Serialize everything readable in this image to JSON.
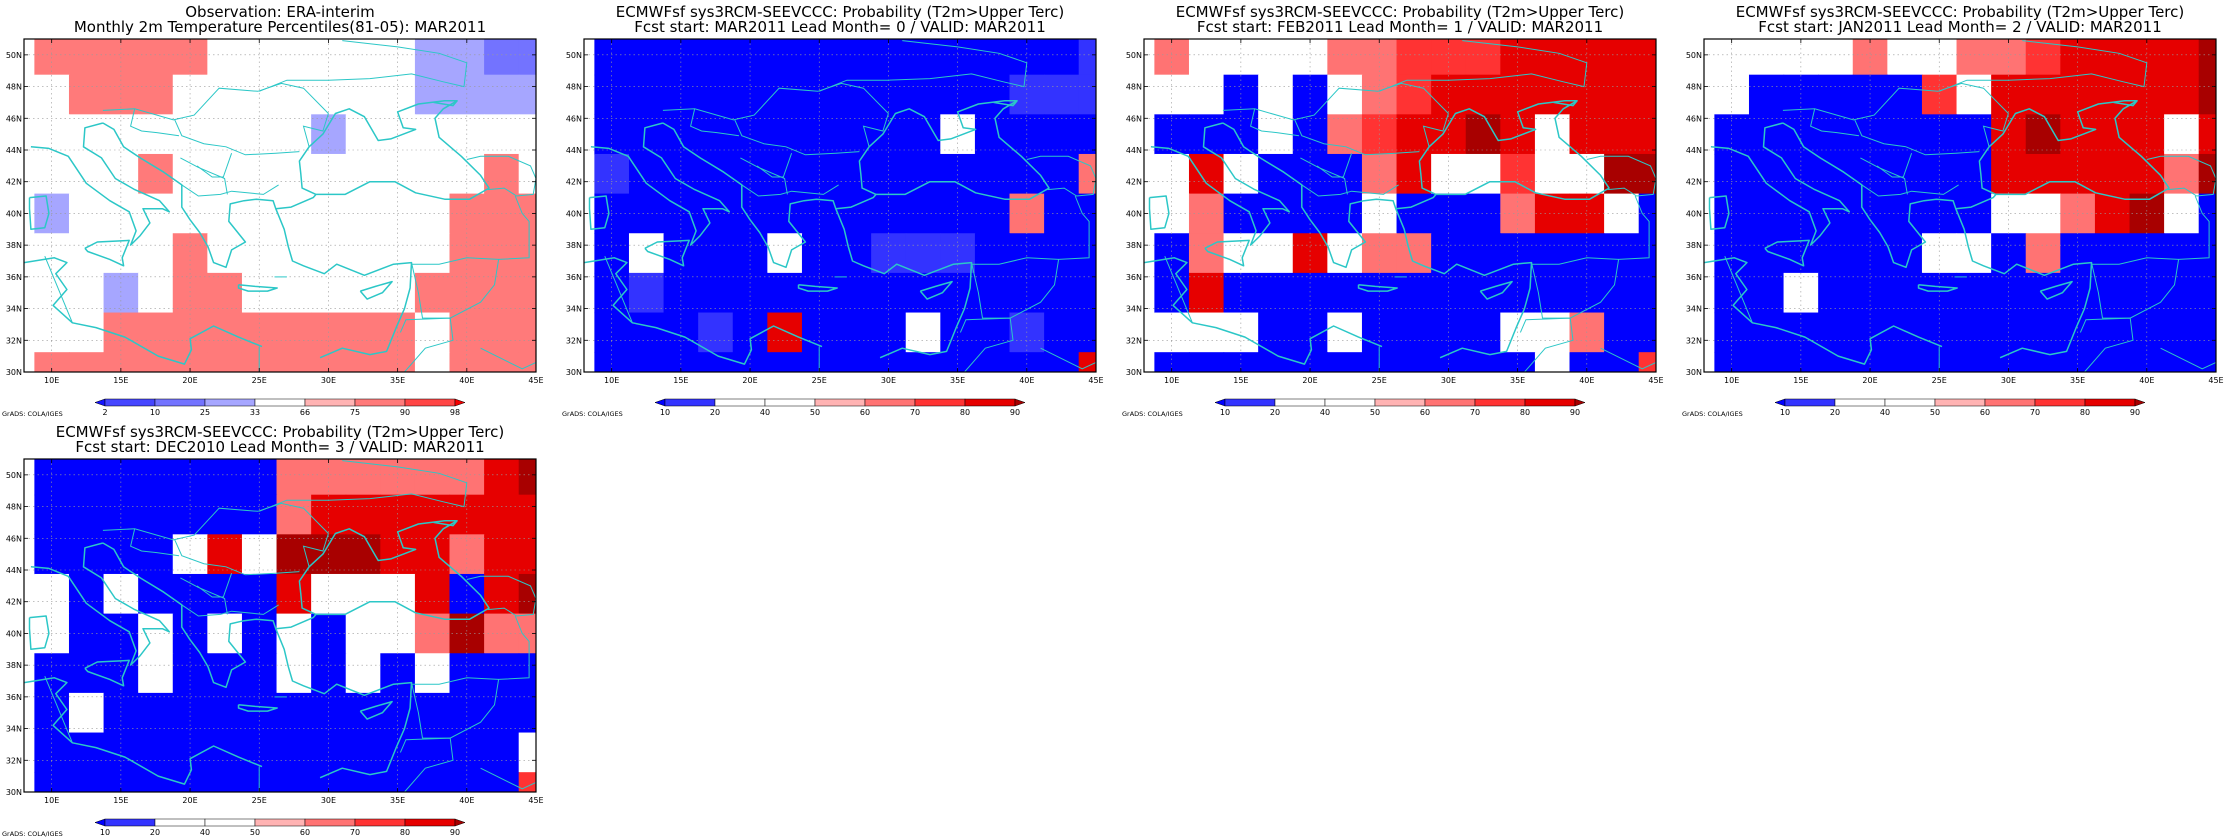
{
  "grid": {
    "lon_start": 8,
    "lon_end": 45,
    "lat_start": 30,
    "lat_end": 51,
    "cell_deg": 2.5
  },
  "axis": {
    "lon_ticks": [
      10,
      15,
      20,
      25,
      30,
      35,
      40,
      45
    ],
    "lon_labels": [
      "10E",
      "15E",
      "20E",
      "25E",
      "30E",
      "35E",
      "40E",
      "45E"
    ],
    "lat_ticks": [
      30,
      32,
      34,
      36,
      38,
      40,
      42,
      44,
      46,
      48,
      50
    ],
    "lat_labels": [
      "30N",
      "32N",
      "34N",
      "36N",
      "38N",
      "40N",
      "42N",
      "44N",
      "46N",
      "48N",
      "50N"
    ]
  },
  "coast_color": "#2cc7c7",
  "credit": "GrADS: COLA/IGES",
  "colorbars": {
    "pct": {
      "labels": [
        "2",
        "10",
        "25",
        "33",
        "66",
        "75",
        "90",
        "98"
      ],
      "colors": [
        "#1414ff",
        "#4646ff",
        "#7373ff",
        "#a6a6ff",
        "#ffffff",
        "#ffb3b3",
        "#ff7a7a",
        "#ff4545",
        "#f50000"
      ]
    },
    "prob": {
      "labels": [
        "10",
        "20",
        "40",
        "50",
        "60",
        "70",
        "80",
        "90"
      ],
      "colors": [
        "#0000ff",
        "#3333ff",
        "#ffffff",
        "#ffffff",
        "#ffb3b3",
        "#ff7373",
        "#ff3333",
        "#e60000",
        "#a80000"
      ]
    }
  },
  "chart_data": [
    {
      "type": "heatmap",
      "title": "Observation: ERA-interim",
      "subtitle": "Monthly 2m Temperature Percentiles(81-05): MAR2011",
      "colorbar": "pct",
      "xlim": [
        8,
        45
      ],
      "ylim": [
        30,
        51
      ],
      "lons": [
        10,
        12.5,
        15,
        17.5,
        20,
        22.5,
        25,
        27.5,
        30,
        32.5,
        35,
        37.5,
        40,
        42.5,
        45
      ],
      "lats": [
        50,
        47.5,
        45,
        42.5,
        40,
        37.5,
        35,
        32.5,
        30
      ],
      "values": [
        [
          80,
          80,
          80,
          80,
          80,
          50,
          50,
          50,
          50,
          50,
          50,
          30,
          30,
          20,
          20
        ],
        [
          50,
          80,
          88,
          80,
          50,
          50,
          50,
          50,
          50,
          50,
          50,
          30,
          30,
          30,
          30
        ],
        [
          50,
          50,
          50,
          50,
          50,
          50,
          50,
          50,
          30,
          50,
          50,
          50,
          50,
          50,
          50
        ],
        [
          50,
          50,
          50,
          80,
          50,
          50,
          50,
          50,
          50,
          50,
          50,
          50,
          50,
          80,
          50
        ],
        [
          30,
          50,
          50,
          50,
          50,
          50,
          50,
          50,
          50,
          50,
          50,
          50,
          80,
          80,
          80
        ],
        [
          50,
          50,
          50,
          50,
          80,
          50,
          50,
          50,
          50,
          50,
          50,
          50,
          80,
          80,
          80
        ],
        [
          50,
          50,
          30,
          50,
          88,
          88,
          50,
          50,
          50,
          50,
          50,
          88,
          88,
          88,
          88
        ],
        [
          50,
          50,
          80,
          88,
          88,
          88,
          80,
          80,
          80,
          80,
          80,
          50,
          80,
          88,
          88
        ],
        [
          80,
          80,
          80,
          80,
          88,
          88,
          80,
          80,
          80,
          80,
          80,
          50,
          80,
          88,
          88
        ]
      ]
    },
    {
      "type": "heatmap",
      "title": "ECMWFsf sys3RCM-SEEVCCC: Probability (T2m>Upper Terc)",
      "subtitle": "Fcst start: MAR2011   Lead Month= 0 / VALID: MAR2011",
      "colorbar": "prob",
      "xlim": [
        8,
        45
      ],
      "ylim": [
        30,
        51
      ],
      "lons": [
        10,
        12.5,
        15,
        17.5,
        20,
        22.5,
        25,
        27.5,
        30,
        32.5,
        35,
        37.5,
        40,
        42.5,
        45
      ],
      "lats": [
        50,
        47.5,
        45,
        42.5,
        40,
        37.5,
        35,
        32.5,
        30
      ],
      "values": [
        [
          5,
          5,
          5,
          5,
          5,
          5,
          5,
          5,
          5,
          5,
          5,
          5,
          5,
          5,
          15
        ],
        [
          5,
          5,
          5,
          5,
          5,
          5,
          5,
          5,
          5,
          5,
          5,
          5,
          15,
          15,
          15
        ],
        [
          5,
          5,
          5,
          5,
          5,
          5,
          5,
          5,
          5,
          5,
          45,
          5,
          5,
          5,
          5
        ],
        [
          15,
          5,
          5,
          5,
          5,
          5,
          5,
          5,
          5,
          5,
          5,
          5,
          5,
          5,
          65
        ],
        [
          5,
          5,
          5,
          5,
          5,
          5,
          5,
          5,
          5,
          5,
          5,
          5,
          65,
          5,
          5
        ],
        [
          5,
          45,
          5,
          5,
          5,
          45,
          5,
          5,
          15,
          15,
          15,
          5,
          5,
          5,
          5
        ],
        [
          5,
          15,
          5,
          5,
          5,
          5,
          5,
          5,
          5,
          5,
          5,
          5,
          5,
          5,
          5
        ],
        [
          5,
          5,
          5,
          15,
          5,
          85,
          5,
          5,
          5,
          45,
          5,
          5,
          15,
          5,
          5
        ],
        [
          5,
          5,
          5,
          5,
          5,
          5,
          5,
          5,
          5,
          5,
          5,
          5,
          5,
          5,
          85
        ]
      ]
    },
    {
      "type": "heatmap",
      "title": "ECMWFsf sys3RCM-SEEVCCC: Probability (T2m>Upper Terc)",
      "subtitle": "Fcst start: FEB2011   Lead Month= 1 / VALID: MAR2011",
      "colorbar": "prob",
      "xlim": [
        8,
        45
      ],
      "ylim": [
        30,
        51
      ],
      "lons": [
        10,
        12.5,
        15,
        17.5,
        20,
        22.5,
        25,
        27.5,
        30,
        32.5,
        35,
        37.5,
        40,
        42.5,
        45
      ],
      "lats": [
        50,
        47.5,
        45,
        42.5,
        40,
        37.5,
        35,
        32.5,
        30
      ],
      "values": [
        [
          65,
          45,
          45,
          45,
          45,
          65,
          65,
          75,
          75,
          75,
          85,
          85,
          85,
          85,
          85
        ],
        [
          45,
          45,
          5,
          45,
          5,
          45,
          65,
          75,
          85,
          85,
          85,
          85,
          85,
          85,
          85
        ],
        [
          5,
          5,
          5,
          45,
          5,
          65,
          75,
          85,
          85,
          95,
          85,
          45,
          85,
          85,
          85
        ],
        [
          45,
          85,
          45,
          5,
          5,
          5,
          65,
          85,
          45,
          45,
          75,
          45,
          45,
          95,
          95
        ],
        [
          45,
          65,
          5,
          5,
          5,
          5,
          45,
          5,
          5,
          5,
          65,
          85,
          85,
          45,
          5
        ],
        [
          5,
          65,
          45,
          45,
          85,
          45,
          65,
          65,
          5,
          5,
          5,
          5,
          5,
          5,
          5
        ],
        [
          5,
          85,
          5,
          5,
          5,
          5,
          5,
          5,
          5,
          5,
          5,
          5,
          5,
          5,
          5
        ],
        [
          45,
          45,
          45,
          5,
          5,
          45,
          5,
          5,
          5,
          5,
          45,
          45,
          65,
          5,
          5
        ],
        [
          5,
          5,
          5,
          5,
          5,
          5,
          5,
          5,
          5,
          5,
          5,
          45,
          5,
          5,
          75
        ]
      ]
    },
    {
      "type": "heatmap",
      "title": "ECMWFsf sys3RCM-SEEVCCC: Probability (T2m>Upper Terc)",
      "subtitle": "Fcst start: JAN2011   Lead Month= 2 / VALID: MAR2011",
      "colorbar": "prob",
      "xlim": [
        8,
        45
      ],
      "ylim": [
        30,
        51
      ],
      "lons": [
        10,
        12.5,
        15,
        17.5,
        20,
        22.5,
        25,
        27.5,
        30,
        32.5,
        35,
        37.5,
        40,
        42.5,
        45
      ],
      "lats": [
        50,
        47.5,
        45,
        42.5,
        40,
        37.5,
        35,
        32.5,
        30
      ],
      "values": [
        [
          45,
          45,
          45,
          45,
          65,
          45,
          45,
          65,
          65,
          75,
          85,
          85,
          85,
          85,
          95
        ],
        [
          45,
          5,
          5,
          5,
          5,
          5,
          75,
          45,
          85,
          85,
          85,
          85,
          85,
          85,
          95
        ],
        [
          5,
          5,
          5,
          5,
          5,
          5,
          5,
          5,
          85,
          95,
          85,
          85,
          85,
          45,
          85
        ],
        [
          5,
          5,
          5,
          5,
          5,
          5,
          5,
          5,
          85,
          85,
          85,
          85,
          85,
          65,
          95
        ],
        [
          5,
          5,
          5,
          5,
          5,
          5,
          5,
          5,
          45,
          45,
          65,
          85,
          95,
          45,
          5
        ],
        [
          5,
          5,
          5,
          5,
          5,
          5,
          45,
          45,
          5,
          65,
          5,
          5,
          5,
          5,
          5
        ],
        [
          5,
          5,
          45,
          5,
          5,
          5,
          5,
          5,
          5,
          5,
          5,
          5,
          5,
          5,
          5
        ],
        [
          5,
          5,
          5,
          5,
          5,
          5,
          5,
          5,
          5,
          5,
          5,
          5,
          5,
          5,
          5
        ],
        [
          5,
          5,
          5,
          5,
          5,
          5,
          5,
          5,
          5,
          5,
          5,
          5,
          5,
          5,
          5
        ]
      ]
    },
    {
      "type": "heatmap",
      "title": "ECMWFsf sys3RCM-SEEVCCC: Probability (T2m>Upper Terc)",
      "subtitle": "Fcst start: DEC2010   Lead Month= 3 / VALID: MAR2011",
      "colorbar": "prob",
      "xlim": [
        8,
        45
      ],
      "ylim": [
        30,
        51
      ],
      "lons": [
        10,
        12.5,
        15,
        17.5,
        20,
        22.5,
        25,
        27.5,
        30,
        32.5,
        35,
        37.5,
        40,
        42.5,
        45
      ],
      "lats": [
        50,
        47.5,
        45,
        42.5,
        40,
        37.5,
        35,
        32.5,
        30
      ],
      "values": [
        [
          5,
          5,
          5,
          5,
          5,
          5,
          5,
          65,
          65,
          65,
          65,
          65,
          65,
          85,
          95
        ],
        [
          5,
          5,
          5,
          5,
          5,
          5,
          5,
          65,
          85,
          85,
          85,
          85,
          85,
          85,
          85
        ],
        [
          5,
          5,
          5,
          5,
          45,
          85,
          45,
          95,
          95,
          95,
          85,
          85,
          65,
          85,
          85
        ],
        [
          45,
          5,
          45,
          5,
          5,
          5,
          5,
          85,
          45,
          45,
          45,
          85,
          5,
          85,
          95
        ],
        [
          45,
          5,
          5,
          45,
          5,
          45,
          5,
          45,
          5,
          45,
          45,
          65,
          95,
          65,
          65
        ],
        [
          5,
          5,
          5,
          45,
          5,
          5,
          5,
          45,
          5,
          45,
          5,
          45,
          5,
          5,
          5
        ],
        [
          5,
          45,
          5,
          5,
          5,
          5,
          5,
          5,
          5,
          5,
          5,
          5,
          5,
          5,
          5
        ],
        [
          5,
          5,
          5,
          5,
          5,
          5,
          5,
          5,
          5,
          5,
          5,
          5,
          5,
          5,
          45
        ],
        [
          5,
          5,
          5,
          5,
          5,
          5,
          5,
          5,
          5,
          5,
          5,
          5,
          5,
          5,
          75
        ]
      ]
    }
  ]
}
